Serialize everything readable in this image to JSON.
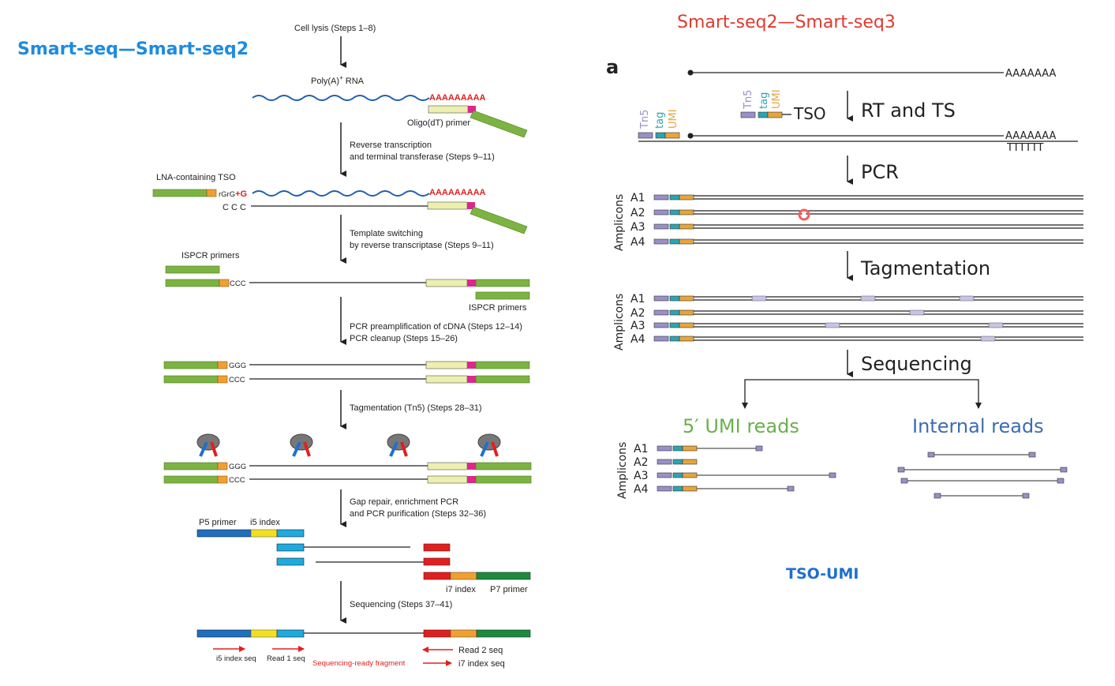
{
  "colors": {
    "green": "#7db342",
    "light_yellow": "#ecefb0",
    "magenta": "#e0258c",
    "orange": "#f0a030",
    "blue_wave": "#1e5fb0",
    "red": "#e02020",
    "tn5_purple": "#9a8fc8",
    "tag_teal": "#2aa6b0",
    "umi_orange": "#e7a53a",
    "p5_blue": "#1f6fc0",
    "i5_yellow": "#f2e020",
    "read_cyan": "#1eaadf",
    "i7_orange": "#f0a030",
    "p7_green": "#1e8a3c",
    "umi_green": "#6ab04c",
    "internal_blue": "#3c6cb0"
  },
  "left": {
    "heading": "Smart-seq—Smart-seq2",
    "cell_lysis": "Cell lysis (Steps 1–8)",
    "polya_rna": "Poly(A)",
    "polya_sup": "+",
    "polya_rna_suffix": " RNA",
    "polya_tail": "AAAAAAAAA",
    "oligo_dt": "Oligo(dT) primer",
    "rt_line1": "Reverse transcription",
    "rt_line2": "and terminal transferase (Steps 9–11)",
    "lna_tso": "LNA-containing TSO",
    "rgrg": "rGrG",
    "plus_g": "+G",
    "ccc_spaced": "C C C",
    "ts_line1": "Template switching",
    "ts_line2": "by reverse transcriptase (Steps 9–11)",
    "ispcr_primers": "ISPCR primers",
    "ccc": "CCC",
    "ggg": "GGG",
    "pcr_line1": "PCR preamplification of cDNA (Steps 12–14)",
    "pcr_line2": "PCR cleanup (Steps 15–26)",
    "tag_line": "Tagmentation (Tn5) (Steps 28–31)",
    "gap_line1": "Gap repair, enrichment PCR",
    "gap_line2": "and PCR purification (Steps 32–36)",
    "p5_primer": "P5 primer",
    "i5_index": "i5 index",
    "i7_index": "i7 index",
    "p7_primer": "P7 primer",
    "seq_line": "Sequencing (Steps 37–41)",
    "i5_index_seq": "i5 index seq",
    "read1_seq": "Read 1 seq",
    "seq_ready": "Sequencing-ready fragment",
    "read2_seq": "Read 2 seq",
    "i7_index_seq": "i7 index seq"
  },
  "right": {
    "heading": "Smart-seq2—Smart-seq3",
    "panel_letter": "a",
    "polya": "AAAAAAA",
    "tn5": "Tn5",
    "tag": "tag",
    "umi": "UMI",
    "tso": "TSO",
    "t_string": "TTTTTT",
    "step_rt": "RT and TS",
    "step_pcr": "PCR",
    "step_tag": "Tagmentation",
    "step_seq": "Sequencing",
    "amplicons": "Amplicons",
    "amplicon_labels": [
      "A1",
      "A2",
      "A3",
      "A4"
    ],
    "umi_reads": "5′ UMI reads",
    "internal_reads": "Internal reads",
    "tso_umi": "TSO-UMI"
  }
}
